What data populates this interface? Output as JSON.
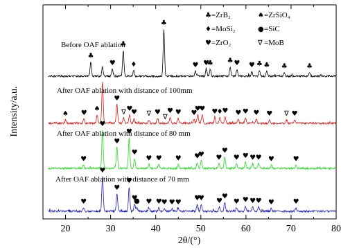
{
  "chart_data": {
    "type": "line",
    "xlabel": "2θ/(°)",
    "ylabel": "Intensity/a.u.",
    "xlim": [
      15,
      80
    ],
    "xticks": [
      20,
      30,
      40,
      50,
      60,
      70,
      80
    ],
    "grid": false,
    "legend_placement": "top-right",
    "legend": [
      {
        "marker": "♣",
        "label": "=ZrB₂"
      },
      {
        "marker": "♠",
        "label": "=ZrSiO₄"
      },
      {
        "marker": "♦",
        "label": "=MoSi₂"
      },
      {
        "marker": "●",
        "label": "=SiC"
      },
      {
        "marker": "♥",
        "label": "=ZrO₂"
      },
      {
        "marker": "∇",
        "label": "=MoB"
      }
    ],
    "series": [
      {
        "name": "Before OAF ablation",
        "color": "#000000",
        "peaks": [
          [
            25.6,
            0.3
          ],
          [
            28.2,
            0.2
          ],
          [
            30.4,
            0.15
          ],
          [
            32.8,
            0.55
          ],
          [
            35.1,
            0.12
          ],
          [
            41.8,
            1.0
          ],
          [
            48.8,
            0.1
          ],
          [
            51.2,
            0.15
          ],
          [
            52.1,
            0.15
          ],
          [
            56.5,
            0.2
          ],
          [
            58.0,
            0.15
          ],
          [
            61.3,
            0.1
          ],
          [
            63.0,
            0.13
          ],
          [
            64.6,
            0.1
          ],
          [
            68.5,
            0.08
          ],
          [
            74.1,
            0.08
          ]
        ],
        "markers": [
          {
            "x": 25.6,
            "m": "♣"
          },
          {
            "x": 30.4,
            "m": "♥"
          },
          {
            "x": 32.8,
            "m": "♣"
          },
          {
            "x": 35.1,
            "m": "♦"
          },
          {
            "x": 41.8,
            "m": "♣"
          },
          {
            "x": 48.8,
            "m": "♥"
          },
          {
            "x": 51.2,
            "m": "♥"
          },
          {
            "x": 52.1,
            "m": "♣"
          },
          {
            "x": 56.5,
            "m": "♣"
          },
          {
            "x": 58.0,
            "m": "♥"
          },
          {
            "x": 61.3,
            "m": "♥"
          },
          {
            "x": 63.0,
            "m": "♣"
          },
          {
            "x": 64.6,
            "m": "♣"
          },
          {
            "x": 68.5,
            "m": "♣"
          },
          {
            "x": 74.1,
            "m": "♣"
          }
        ]
      },
      {
        "name": "After OAF ablation with distance of 100mm",
        "color": "#ee1111",
        "peaks": [
          [
            20.0,
            0.08
          ],
          [
            24.1,
            0.1
          ],
          [
            27.0,
            0.2
          ],
          [
            28.2,
            1.0
          ],
          [
            31.4,
            0.45
          ],
          [
            32.9,
            0.12
          ],
          [
            34.2,
            0.2
          ],
          [
            35.2,
            0.12
          ],
          [
            38.5,
            0.08
          ],
          [
            40.4,
            0.12
          ],
          [
            43.2,
            0.15
          ],
          [
            45.0,
            0.12
          ],
          [
            48.5,
            0.1
          ],
          [
            49.3,
            0.2
          ],
          [
            50.3,
            0.2
          ],
          [
            53.1,
            0.13
          ],
          [
            54.2,
            0.13
          ],
          [
            55.4,
            0.15
          ],
          [
            58.3,
            0.1
          ],
          [
            59.9,
            0.13
          ],
          [
            62.3,
            0.1
          ],
          [
            65.2,
            0.08
          ],
          [
            69.0,
            0.08
          ],
          [
            70.8,
            0.08
          ]
        ],
        "markers": [
          {
            "x": 20.0,
            "m": "♠"
          },
          {
            "x": 24.1,
            "m": "♥"
          },
          {
            "x": 27.0,
            "m": "♠"
          },
          {
            "x": 31.4,
            "m": "♥"
          },
          {
            "x": 32.9,
            "m": "∇"
          },
          {
            "x": 34.2,
            "m": "♥"
          },
          {
            "x": 35.2,
            "m": "♥"
          },
          {
            "x": 38.5,
            "m": "∇"
          },
          {
            "x": 40.4,
            "m": "♥"
          },
          {
            "x": 42.1,
            "m": "∇"
          },
          {
            "x": 43.2,
            "m": "♥"
          },
          {
            "x": 45.0,
            "m": "♥"
          },
          {
            "x": 48.5,
            "m": "♥"
          },
          {
            "x": 49.3,
            "m": "♥"
          },
          {
            "x": 50.3,
            "m": "♥"
          },
          {
            "x": 53.1,
            "m": "♥"
          },
          {
            "x": 54.2,
            "m": "♦"
          },
          {
            "x": 55.4,
            "m": "♥"
          },
          {
            "x": 58.3,
            "m": "♥"
          },
          {
            "x": 59.9,
            "m": "♥"
          },
          {
            "x": 62.3,
            "m": "♥"
          },
          {
            "x": 65.2,
            "m": "♥"
          },
          {
            "x": 69.0,
            "m": "∇"
          },
          {
            "x": 70.8,
            "m": "♥"
          }
        ]
      },
      {
        "name": "After OAF ablation with distance of 80 mm",
        "color": "#22dd22",
        "peaks": [
          [
            24.0,
            0.08
          ],
          [
            28.2,
            1.0
          ],
          [
            31.4,
            0.55
          ],
          [
            34.1,
            0.8
          ],
          [
            35.3,
            0.25
          ],
          [
            38.5,
            0.1
          ],
          [
            40.7,
            0.1
          ],
          [
            45.0,
            0.1
          ],
          [
            49.2,
            0.15
          ],
          [
            50.1,
            0.2
          ],
          [
            54.0,
            0.12
          ],
          [
            55.3,
            0.3
          ],
          [
            57.9,
            0.12
          ],
          [
            59.9,
            0.16
          ],
          [
            61.5,
            0.12
          ],
          [
            62.8,
            0.12
          ],
          [
            65.6,
            0.08
          ],
          [
            71.1,
            0.08
          ]
        ],
        "markers": [
          {
            "x": 24.0,
            "m": "♥"
          },
          {
            "x": 28.2,
            "m": "♥"
          },
          {
            "x": 31.4,
            "m": "♥"
          },
          {
            "x": 34.1,
            "m": "♥"
          },
          {
            "x": 35.3,
            "m": "♥"
          },
          {
            "x": 38.5,
            "m": "♥"
          },
          {
            "x": 40.7,
            "m": "♥"
          },
          {
            "x": 45.0,
            "m": "♥"
          },
          {
            "x": 49.2,
            "m": "♥"
          },
          {
            "x": 50.1,
            "m": "♥"
          },
          {
            "x": 54.0,
            "m": "♥"
          },
          {
            "x": 55.3,
            "m": "♥"
          },
          {
            "x": 57.9,
            "m": "♥"
          },
          {
            "x": 59.9,
            "m": "♥"
          },
          {
            "x": 61.5,
            "m": "♥"
          },
          {
            "x": 62.8,
            "m": "♥"
          },
          {
            "x": 65.6,
            "m": "♥"
          },
          {
            "x": 71.1,
            "m": "♥"
          }
        ]
      },
      {
        "name": "After OAF ablation with distance of 70 mm",
        "color": "#1a1acc",
        "peaks": [
          [
            24.0,
            0.1
          ],
          [
            28.2,
            1.0
          ],
          [
            31.4,
            0.5
          ],
          [
            34.1,
            0.7
          ],
          [
            35.3,
            0.2
          ],
          [
            35.8,
            0.12
          ],
          [
            38.5,
            0.1
          ],
          [
            40.7,
            0.1
          ],
          [
            41.9,
            0.08
          ],
          [
            43.6,
            0.08
          ],
          [
            45.0,
            0.08
          ],
          [
            49.2,
            0.2
          ],
          [
            50.1,
            0.2
          ],
          [
            54.1,
            0.12
          ],
          [
            55.3,
            0.25
          ],
          [
            57.9,
            0.1
          ],
          [
            59.9,
            0.15
          ],
          [
            61.5,
            0.12
          ],
          [
            62.8,
            0.12
          ],
          [
            65.6,
            0.08
          ],
          [
            71.1,
            0.1
          ]
        ],
        "markers": [
          {
            "x": 24.0,
            "m": "♥"
          },
          {
            "x": 28.2,
            "m": "♥"
          },
          {
            "x": 31.4,
            "m": "♥"
          },
          {
            "x": 34.1,
            "m": "♥"
          },
          {
            "x": 35.3,
            "m": "♥"
          },
          {
            "x": 35.8,
            "m": "●"
          },
          {
            "x": 38.5,
            "m": "♥"
          },
          {
            "x": 40.7,
            "m": "♥"
          },
          {
            "x": 41.9,
            "m": "♥"
          },
          {
            "x": 43.6,
            "m": "♥"
          },
          {
            "x": 45.0,
            "m": "♥"
          },
          {
            "x": 49.2,
            "m": "♥"
          },
          {
            "x": 50.1,
            "m": "♥"
          },
          {
            "x": 54.1,
            "m": "♥"
          },
          {
            "x": 55.3,
            "m": "♥"
          },
          {
            "x": 57.9,
            "m": "♥"
          },
          {
            "x": 59.9,
            "m": "♥"
          },
          {
            "x": 61.5,
            "m": "♥"
          },
          {
            "x": 62.8,
            "m": "♥"
          },
          {
            "x": 65.6,
            "m": "♥"
          },
          {
            "x": 71.1,
            "m": "♥"
          }
        ]
      }
    ]
  }
}
